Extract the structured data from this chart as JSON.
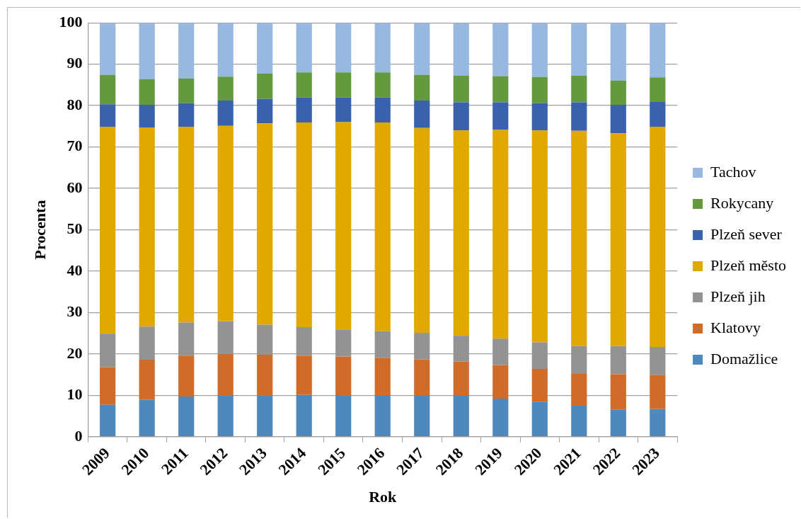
{
  "chart_data": {
    "type": "bar",
    "stacked": true,
    "xlabel": "Rok",
    "ylabel": "Procenta",
    "categories": [
      "2009",
      "2010",
      "2011",
      "2012",
      "2013",
      "2014",
      "2015",
      "2016",
      "2017",
      "2018",
      "2019",
      "2020",
      "2021",
      "2022",
      "2023"
    ],
    "series": [
      {
        "name": "Domažlice",
        "color": "#4f88bc",
        "values": [
          7.7,
          8.9,
          9.7,
          10.0,
          10.0,
          10.1,
          10.0,
          9.9,
          9.9,
          9.9,
          9.2,
          8.5,
          7.5,
          6.6,
          6.7
        ]
      },
      {
        "name": "Klatovy",
        "color": "#d06c2a",
        "values": [
          9.1,
          9.7,
          9.9,
          10.0,
          9.8,
          9.5,
          9.4,
          9.2,
          8.8,
          8.3,
          8.1,
          7.9,
          7.7,
          8.5,
          8.2
        ]
      },
      {
        "name": "Plzeň jih",
        "color": "#939393",
        "values": [
          8.1,
          8.0,
          8.0,
          7.9,
          7.3,
          6.9,
          6.5,
          6.4,
          6.4,
          6.2,
          6.4,
          6.4,
          6.7,
          6.8,
          6.8
        ]
      },
      {
        "name": "Plzeň město",
        "color": "#e0a800",
        "values": [
          50.0,
          48.1,
          47.3,
          47.2,
          48.6,
          49.4,
          50.1,
          50.4,
          49.5,
          49.6,
          50.4,
          51.2,
          52.0,
          51.4,
          53.2
        ]
      },
      {
        "name": "Plzeň sever",
        "color": "#3a62ac",
        "values": [
          5.4,
          5.5,
          5.7,
          6.1,
          5.9,
          6.1,
          6.0,
          6.1,
          6.6,
          6.8,
          6.7,
          6.6,
          6.9,
          6.9,
          6.1
        ]
      },
      {
        "name": "Rokycany",
        "color": "#64993d",
        "values": [
          7.1,
          6.2,
          5.9,
          5.8,
          6.1,
          6.0,
          6.0,
          6.0,
          6.2,
          6.4,
          6.3,
          6.3,
          6.4,
          5.8,
          5.8
        ]
      },
      {
        "name": "Tachov",
        "color": "#97b8df",
        "values": [
          12.6,
          13.6,
          13.5,
          13.0,
          12.3,
          12.0,
          12.0,
          12.0,
          12.6,
          12.8,
          12.9,
          13.1,
          12.8,
          14.0,
          13.2
        ]
      }
    ],
    "ylim": [
      0,
      100
    ],
    "yticks": [
      0,
      10,
      20,
      30,
      40,
      50,
      60,
      70,
      80,
      90,
      100
    ],
    "grid": "y",
    "legend": "right"
  }
}
